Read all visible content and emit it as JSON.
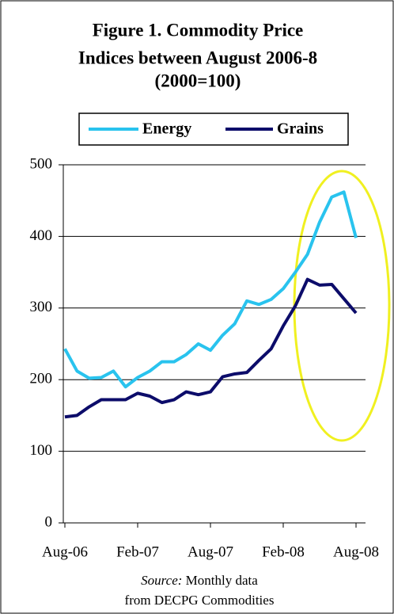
{
  "chart_data": {
    "type": "line",
    "title": [
      "Figure 1. Commodity Price",
      "Indices between August 2006-8",
      "(2000=100)"
    ],
    "categories": [
      "Aug-06",
      null,
      null,
      null,
      null,
      null,
      "Feb-07",
      null,
      null,
      null,
      null,
      null,
      "Aug-07",
      null,
      null,
      null,
      null,
      null,
      "Feb-08",
      null,
      null,
      null,
      null,
      null,
      "Aug-08"
    ],
    "series": [
      {
        "name": "Energy",
        "color": "#29c3ee",
        "values": [
          243,
          212,
          202,
          203,
          212,
          190,
          203,
          212,
          225,
          225,
          235,
          250,
          241,
          262,
          278,
          310,
          305,
          312,
          327,
          350,
          375,
          420,
          455,
          462,
          398
        ]
      },
      {
        "name": "Grains",
        "color": "#0c0c6a",
        "values": [
          148,
          150,
          162,
          172,
          172,
          172,
          181,
          177,
          168,
          172,
          183,
          179,
          183,
          204,
          208,
          210,
          227,
          243,
          275,
          303,
          340,
          332,
          333,
          313,
          293
        ]
      }
    ],
    "ylim": [
      0,
      500
    ],
    "yticks": [
      0,
      100,
      200,
      300,
      400,
      500
    ],
    "grid": true,
    "source": {
      "label": "Source:",
      "lines": [
        "Monthly data",
        "from DECPG Commodities"
      ]
    }
  }
}
